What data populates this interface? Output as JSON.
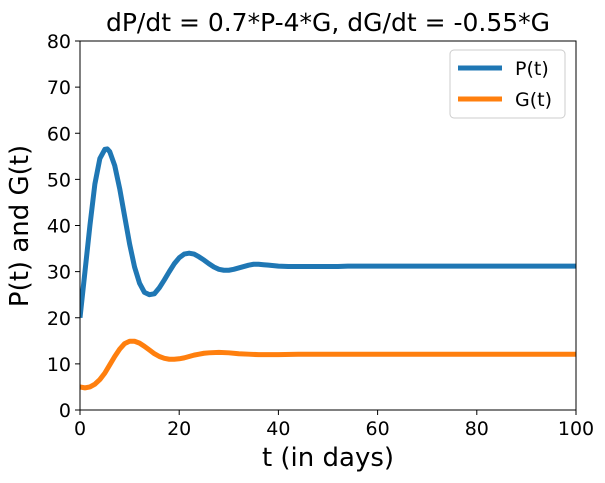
{
  "chart_data": {
    "type": "line",
    "title": "dP/dt = 0.7*P-4*G, dG/dt = -0.55*G",
    "xlabel": "t (in days)",
    "ylabel": "P(t) and G(t)",
    "xlim": [
      0,
      100
    ],
    "ylim": [
      0,
      80
    ],
    "xticks": [
      "0",
      "20",
      "40",
      "60",
      "80",
      "100"
    ],
    "yticks": [
      "0",
      "10",
      "20",
      "30",
      "40",
      "50",
      "60",
      "70",
      "80"
    ],
    "grid": false,
    "legend_position": "top-right",
    "series": [
      {
        "name": "P(t)",
        "color": "#1f77b4",
        "x": [
          0,
          1,
          2,
          3,
          4,
          5,
          5.5,
          6,
          7,
          8,
          9,
          10,
          11,
          12,
          13,
          14,
          15,
          16,
          17,
          18,
          19,
          20,
          21,
          22,
          23,
          24,
          25,
          26,
          27,
          28,
          29,
          30,
          31,
          32,
          33,
          34,
          35,
          36,
          37,
          38,
          40,
          42,
          44,
          46,
          48,
          50,
          52,
          54,
          56,
          58,
          60,
          65,
          70,
          75,
          80,
          85,
          90,
          95,
          100
        ],
        "y": [
          20,
          30,
          40,
          49,
          54.5,
          56.5,
          56.6,
          56,
          53,
          48,
          42,
          36,
          31,
          27.5,
          25.5,
          25,
          25.2,
          26.5,
          28.2,
          30,
          31.7,
          33,
          33.8,
          34,
          33.8,
          33.2,
          32.5,
          31.7,
          31,
          30.5,
          30.3,
          30.3,
          30.5,
          30.8,
          31.1,
          31.4,
          31.6,
          31.6,
          31.5,
          31.4,
          31.2,
          31.1,
          31.1,
          31.1,
          31.1,
          31.1,
          31.1,
          31.2,
          31.2,
          31.2,
          31.2,
          31.2,
          31.2,
          31.2,
          31.2,
          31.2,
          31.2,
          31.2,
          31.2
        ]
      },
      {
        "name": "G(t)",
        "color": "#ff7f0e",
        "x": [
          0,
          1,
          2,
          3,
          4,
          5,
          6,
          7,
          8,
          9,
          10,
          11,
          12,
          13,
          14,
          15,
          16,
          17,
          18,
          19,
          20,
          21,
          22,
          23,
          24,
          25,
          26,
          28,
          30,
          32,
          34,
          36,
          38,
          40,
          44,
          48,
          52,
          56,
          60,
          70,
          80,
          90,
          100
        ],
        "y": [
          5,
          4.8,
          5,
          5.6,
          6.6,
          8,
          9.8,
          11.6,
          13.2,
          14.4,
          14.9,
          14.9,
          14.5,
          13.8,
          13,
          12.2,
          11.6,
          11.2,
          11,
          11,
          11.1,
          11.3,
          11.6,
          11.9,
          12.1,
          12.3,
          12.4,
          12.5,
          12.4,
          12.2,
          12.1,
          12,
          12,
          12,
          12.1,
          12.1,
          12.1,
          12.1,
          12.1,
          12.1,
          12.1,
          12.1,
          12.1
        ]
      }
    ]
  }
}
